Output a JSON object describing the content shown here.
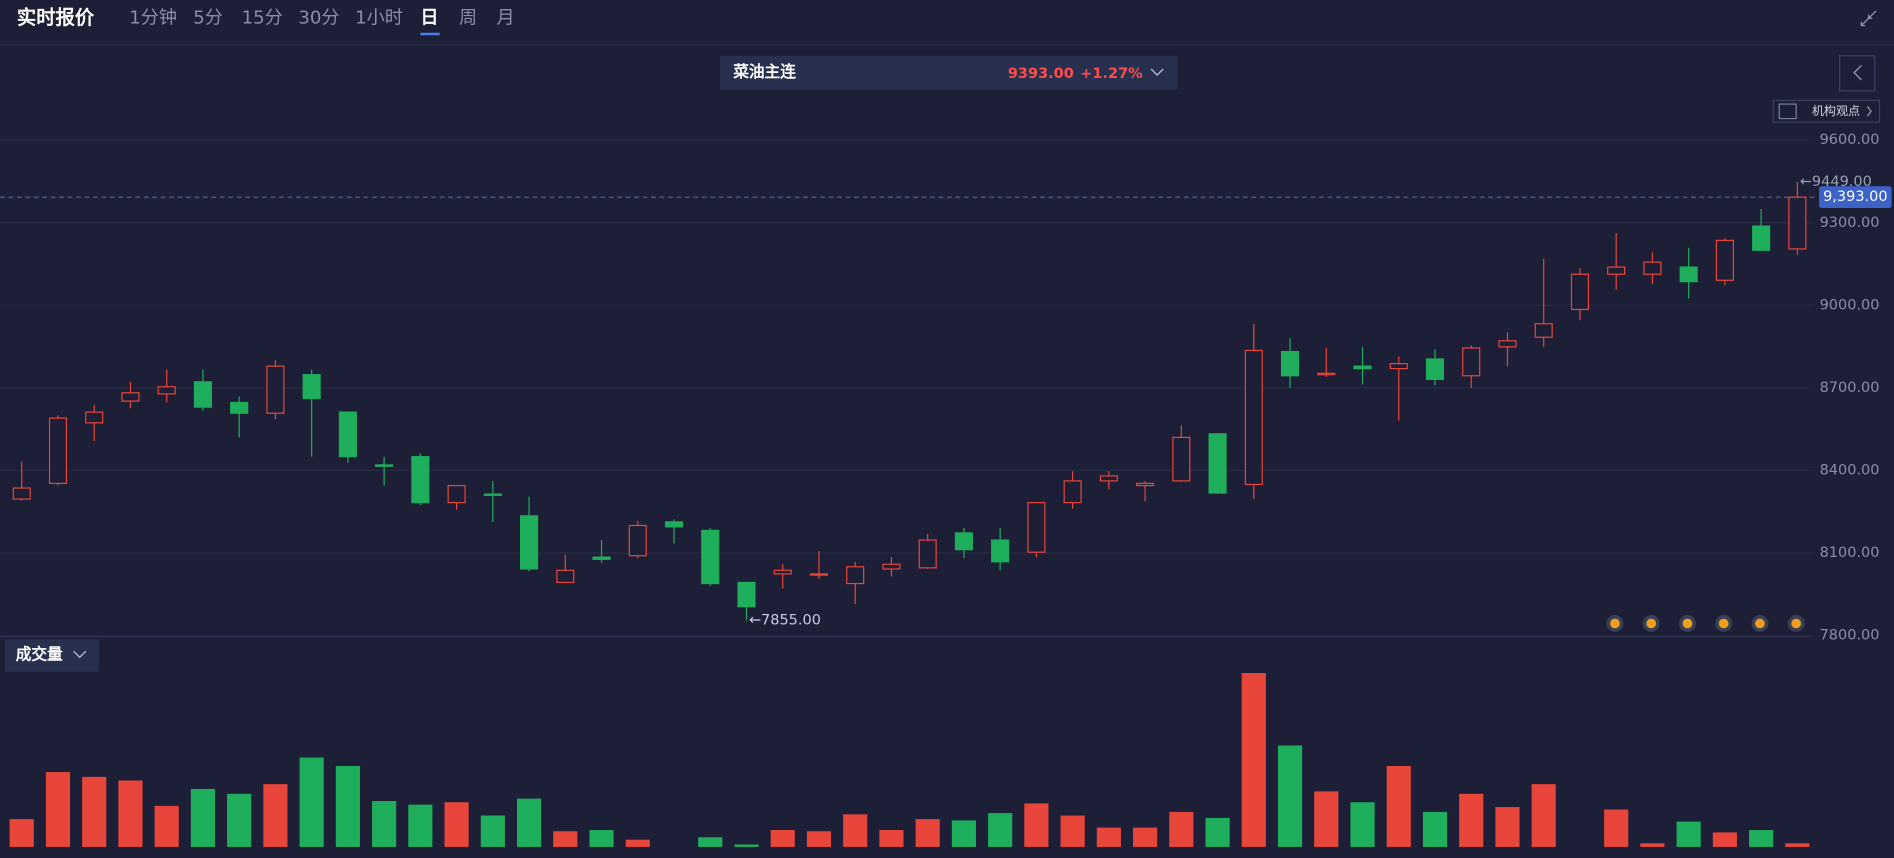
{
  "header": {
    "title": "实时报价",
    "tabs": [
      "1分钟",
      "5分",
      "15分",
      "30分",
      "1小时",
      "日",
      "周",
      "月"
    ]
  },
  "ticker": {
    "name": "菜油主连",
    "price": "9393.00",
    "change": "+1.27%"
  },
  "side_button": "机构观点",
  "volume_label": "成交量",
  "chart_data": {
    "type": "candlestick",
    "open": [
      8296,
      8353,
      8573,
      8652,
      8678,
      8722,
      8647,
      8608,
      8748,
      8612,
      8420,
      8450,
      8283,
      8314,
      8235,
      7993,
      8085,
      8090,
      8213,
      8182,
      7993,
      8024,
      8020,
      7989,
      8042,
      8046,
      8173,
      8147,
      8103,
      8283,
      8362,
      8345,
      8362,
      8533,
      8349,
      8832,
      8748,
      8779,
      8770,
      8805,
      8744,
      8849,
      8884,
      8985,
      9113,
      9113,
      9139,
      9091,
      9288,
      9205
    ],
    "high": [
      8432,
      8600,
      8638,
      8722,
      8766,
      8766,
      8669,
      8801,
      8766,
      8612,
      8450,
      8463,
      8345,
      8362,
      8305,
      8094,
      8147,
      8217,
      8222,
      8191,
      7993,
      8059,
      8107,
      8068,
      8085,
      8169,
      8191,
      8191,
      8283,
      8397,
      8397,
      8362,
      8564,
      8533,
      8933,
      8880,
      8845,
      8849,
      8814,
      8840,
      8854,
      8902,
      9170,
      9135,
      9262,
      9192,
      9209,
      9244,
      9350,
      9449
    ],
    "low": [
      8290,
      8345,
      8507,
      8626,
      8647,
      8617,
      8520,
      8586,
      8450,
      8428,
      8345,
      8274,
      8257,
      8213,
      8033,
      7993,
      8064,
      8081,
      8134,
      7980,
      7855,
      7971,
      8006,
      7914,
      8015,
      8042,
      8081,
      8037,
      8085,
      8261,
      8331,
      8288,
      8358,
      8314,
      8296,
      8700,
      8740,
      8713,
      8581,
      8709,
      8700,
      8779,
      8849,
      8946,
      9056,
      9078,
      9025,
      9073,
      9200,
      9183
    ],
    "close": [
      8336,
      8590,
      8612,
      8682,
      8704,
      8630,
      8608,
      8779,
      8661,
      8450,
      8415,
      8283,
      8345,
      8310,
      8042,
      8037,
      8077,
      8200,
      8195,
      7989,
      7905,
      8037,
      8024,
      8050,
      8059,
      8147,
      8112,
      8068,
      8283,
      8362,
      8380,
      8353,
      8520,
      8318,
      8836,
      8744,
      8753,
      8770,
      8788,
      8731,
      8845,
      8871,
      8933,
      9113,
      9139,
      9157,
      9086,
      9236,
      9200,
      9393
    ],
    "volume": [
      23,
      62,
      58,
      55,
      34,
      48,
      44,
      52,
      74,
      67,
      38,
      35,
      37,
      26,
      40,
      13,
      14,
      6,
      0,
      8,
      2,
      14,
      13,
      27,
      14,
      23,
      22,
      28,
      36,
      26,
      16,
      16,
      29,
      24,
      144,
      84,
      46,
      37,
      67,
      29,
      44,
      33,
      52,
      0,
      31,
      3,
      21,
      12,
      14,
      3
    ],
    "up_color": "#e8463a",
    "down_color": "#1fae5b",
    "ylim": [
      7800,
      9942
    ],
    "yticks": [
      {
        "value": 7800,
        "label": "7800.00"
      },
      {
        "value": 8100,
        "label": "8100.00"
      },
      {
        "value": 8400,
        "label": "8400.00"
      },
      {
        "value": 8700,
        "label": "8700.00"
      },
      {
        "value": 9000,
        "label": "9000.00"
      },
      {
        "value": 9300,
        "label": "9300.00"
      },
      {
        "value": 9600,
        "label": "9600.00"
      }
    ],
    "grid": true,
    "high_label": "←9449.00",
    "low_label": "←7855.00",
    "last_price": {
      "value": 9393,
      "label": "9,393.00"
    }
  }
}
